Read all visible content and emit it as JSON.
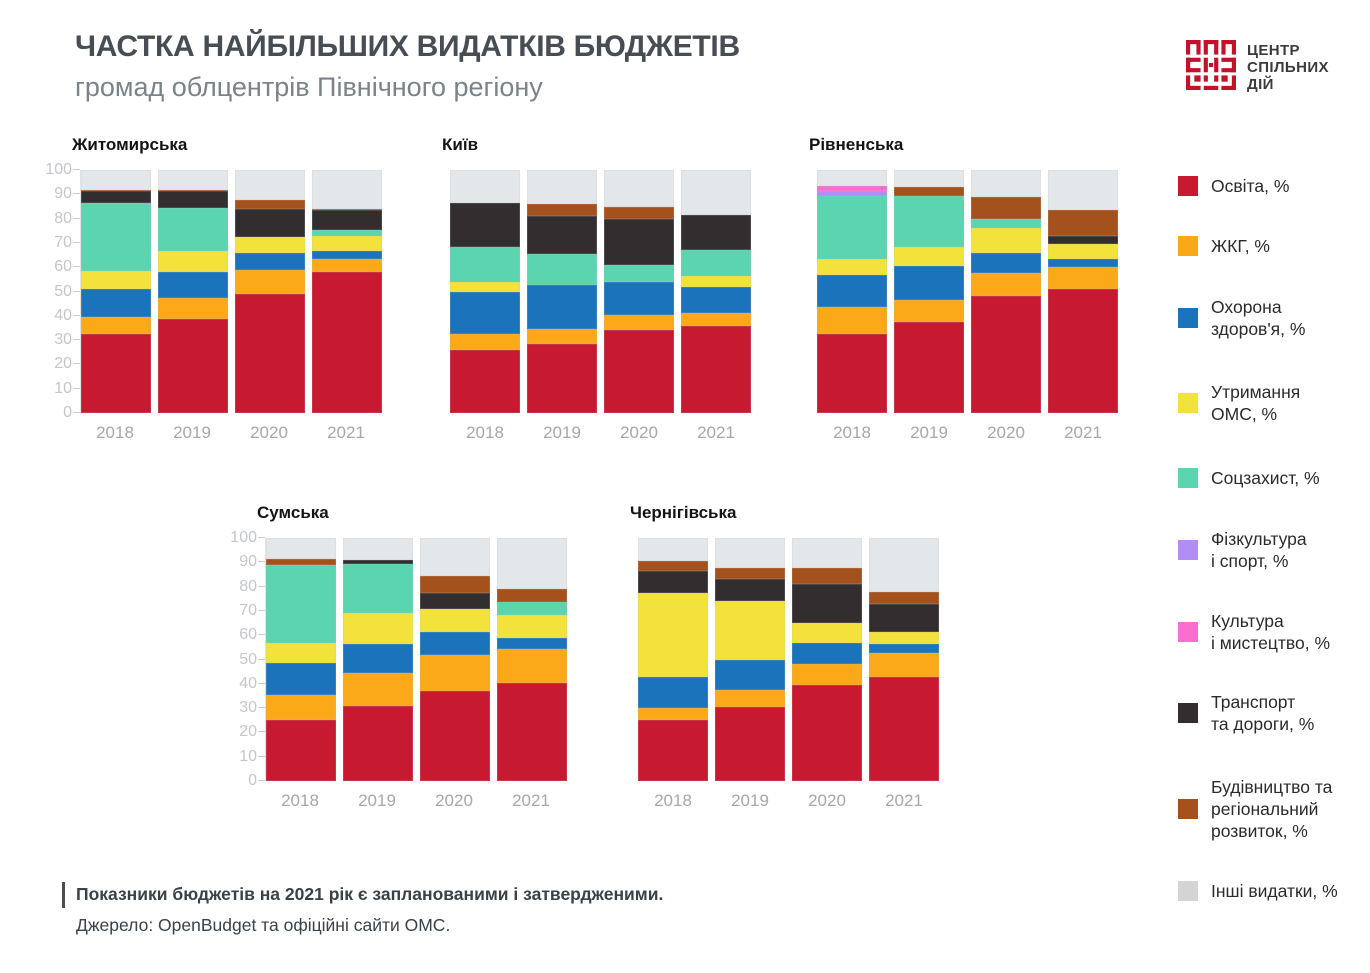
{
  "header": {
    "title": "ЧАСТКА НАЙБІЛЬШИХ ВИДАТКІВ БЮДЖЕТІВ",
    "subtitle": "громад облцентрів Північного регіону"
  },
  "logo": {
    "lines": [
      "ЦЕНТР",
      "СПІЛЬНИХ",
      "ДІЙ"
    ],
    "brand_color": "#C5122B",
    "text_color": "#3B3B3A"
  },
  "legend": {
    "items": [
      {
        "label": "Освіта, %",
        "color": "#C7192F"
      },
      {
        "label": "ЖКГ, %",
        "color": "#FBA919"
      },
      {
        "label": "Охорона\nздоров'я, %",
        "color": "#1B74BB"
      },
      {
        "label": "Утримання\nОМС, %",
        "color": "#F3E23B"
      },
      {
        "label": "Соцзахист, %",
        "color": "#5BD5B0"
      },
      {
        "label": "Фізкультура\nі спорт, %",
        "color": "#B18EF4"
      },
      {
        "label": "Культура\nі мистецтво, %",
        "color": "#FB6ECF"
      },
      {
        "label": "Транспорт\nта дороги, %",
        "color": "#322E2F"
      },
      {
        "label": "Будівництво та\nрегіональний\nрозвиток, %",
        "color": "#A5511D"
      },
      {
        "label": "Інші  видатки, %",
        "color": "#D4D4D4"
      }
    ]
  },
  "series_colors": {
    "Освіта": "#C7192F",
    "ЖКГ": "#FBA919",
    "Охорона здоров'я": "#1B74BB",
    "Утримання ОМС": "#F3E23B",
    "Соцзахист": "#5BD5B0",
    "Фізкультура і спорт": "#B18EF4",
    "Культура і мистецтво": "#FB6ECF",
    "Транспорт та дороги": "#322E2F",
    "Будівництво та регіональний розвиток": "#A5511D",
    "Інші видатки": "#E4E7E9"
  },
  "chart_data": [
    {
      "type": "bar",
      "stacked": true,
      "title": "Житомирська",
      "categories": [
        "2018",
        "2019",
        "2020",
        "2021"
      ],
      "ylim": [
        0,
        100
      ],
      "y_ticks_step": 10,
      "y_axis_visible": true,
      "grid": false,
      "series": [
        {
          "name": "Освіта",
          "values": [
            32.5,
            38.5,
            49,
            58
          ]
        },
        {
          "name": "ЖКГ",
          "values": [
            7,
            9,
            10,
            5.5
          ]
        },
        {
          "name": "Охорона здоров'я",
          "values": [
            11.5,
            10.5,
            7,
            3
          ]
        },
        {
          "name": "Утримання ОМС",
          "values": [
            7.5,
            8.5,
            6.5,
            6.5
          ]
        },
        {
          "name": "Соцзахист",
          "values": [
            27.5,
            18,
            0,
            2.5
          ]
        },
        {
          "name": "Фізкультура і спорт",
          "values": [
            0.5,
            0,
            0,
            0
          ]
        },
        {
          "name": "Культура і мистецтво",
          "values": [
            0,
            0,
            0,
            0
          ]
        },
        {
          "name": "Транспорт та дороги",
          "values": [
            5,
            7,
            11.5,
            8
          ]
        },
        {
          "name": "Будівництво та регіональний розвиток",
          "values": [
            0.5,
            0.5,
            3.5,
            0.5
          ]
        },
        {
          "name": "Інші видатки",
          "values": [
            8,
            8,
            12.5,
            16
          ]
        }
      ]
    },
    {
      "type": "bar",
      "stacked": true,
      "title": "Київ",
      "categories": [
        "2018",
        "2019",
        "2020",
        "2021"
      ],
      "ylim": [
        0,
        100
      ],
      "y_ticks_step": 10,
      "y_axis_visible": false,
      "grid": false,
      "series": [
        {
          "name": "Освіта",
          "values": [
            26,
            28.5,
            34,
            36
          ]
        },
        {
          "name": "ЖКГ",
          "values": [
            6.5,
            6,
            6.5,
            5
          ]
        },
        {
          "name": "Охорона здоров'я",
          "values": [
            17.5,
            18,
            13.5,
            11
          ]
        },
        {
          "name": "Утримання ОМС",
          "values": [
            4,
            0,
            0,
            4.5
          ]
        },
        {
          "name": "Соцзахист",
          "values": [
            14.5,
            13,
            7,
            10.5
          ]
        },
        {
          "name": "Фізкультура і спорт",
          "values": [
            0,
            0,
            0,
            0
          ]
        },
        {
          "name": "Культура і мистецтво",
          "values": [
            0,
            0,
            0,
            0
          ]
        },
        {
          "name": "Транспорт та дороги",
          "values": [
            18,
            15.5,
            19,
            14.5
          ]
        },
        {
          "name": "Будівництво та регіональний розвиток",
          "values": [
            0,
            5,
            5,
            0
          ]
        },
        {
          "name": "Інші видатки",
          "values": [
            13.5,
            14,
            15,
            18.5
          ]
        }
      ]
    },
    {
      "type": "bar",
      "stacked": true,
      "title": "Рівненська",
      "categories": [
        "2018",
        "2019",
        "2020",
        "2021"
      ],
      "ylim": [
        0,
        100
      ],
      "y_ticks_step": 10,
      "y_axis_visible": false,
      "grid": false,
      "series": [
        {
          "name": "Освіта",
          "values": [
            32.5,
            37.5,
            48,
            51
          ]
        },
        {
          "name": "ЖКГ",
          "values": [
            11,
            9,
            9.5,
            9
          ]
        },
        {
          "name": "Охорона здоров'я",
          "values": [
            13.5,
            14,
            8.5,
            3.5
          ]
        },
        {
          "name": "Утримання ОМС",
          "values": [
            6.5,
            8,
            10,
            6
          ]
        },
        {
          "name": "Соцзахист",
          "values": [
            26,
            21,
            4,
            0
          ]
        },
        {
          "name": "Фізкультура і спорт",
          "values": [
            2,
            0,
            0,
            0
          ]
        },
        {
          "name": "Культура і мистецтво",
          "values": [
            2,
            0,
            0,
            0
          ]
        },
        {
          "name": "Транспорт та дороги",
          "values": [
            0,
            0,
            0,
            3.5
          ]
        },
        {
          "name": "Будівництво та регіональний розвиток",
          "values": [
            0,
            3.5,
            9,
            10.5
          ]
        },
        {
          "name": "Інші видатки",
          "values": [
            6.5,
            7,
            11,
            16.5
          ]
        }
      ]
    },
    {
      "type": "bar",
      "stacked": true,
      "title": "Сумська",
      "categories": [
        "2018",
        "2019",
        "2020",
        "2021"
      ],
      "ylim": [
        0,
        100
      ],
      "y_ticks_step": 10,
      "y_axis_visible": true,
      "grid": false,
      "series": [
        {
          "name": "Освіта",
          "values": [
            25,
            31,
            37,
            40.5
          ]
        },
        {
          "name": "ЖКГ",
          "values": [
            10.5,
            13.5,
            15,
            14
          ]
        },
        {
          "name": "Охорона здоров'я",
          "values": [
            13,
            12,
            9.5,
            4.5
          ]
        },
        {
          "name": "Утримання ОМС",
          "values": [
            8.5,
            12.5,
            9.5,
            9.5
          ]
        },
        {
          "name": "Соцзахист",
          "values": [
            32,
            20.5,
            0,
            5
          ]
        },
        {
          "name": "Фізкультура і спорт",
          "values": [
            0,
            0,
            0,
            0
          ]
        },
        {
          "name": "Культура і мистецтво",
          "values": [
            0,
            0,
            0,
            0
          ]
        },
        {
          "name": "Транспорт та дороги",
          "values": [
            0,
            1.5,
            6.5,
            0
          ]
        },
        {
          "name": "Будівництво та регіональний розвиток",
          "values": [
            2.5,
            0,
            7,
            5.5
          ]
        },
        {
          "name": "Інші видатки",
          "values": [
            8.5,
            9,
            15.5,
            21
          ]
        }
      ]
    },
    {
      "type": "bar",
      "stacked": true,
      "title": "Чернігівська",
      "categories": [
        "2018",
        "2019",
        "2020",
        "2021"
      ],
      "ylim": [
        0,
        100
      ],
      "y_ticks_step": 10,
      "y_axis_visible": false,
      "grid": false,
      "series": [
        {
          "name": "Освіта",
          "values": [
            25,
            30.5,
            39.5,
            43
          ]
        },
        {
          "name": "ЖКГ",
          "values": [
            5,
            7,
            8.5,
            9.5
          ]
        },
        {
          "name": "Охорона здоров'я",
          "values": [
            13,
            12.5,
            9,
            4
          ]
        },
        {
          "name": "Утримання ОМС",
          "values": [
            34.5,
            24,
            8,
            5
          ]
        },
        {
          "name": "Соцзахист",
          "values": [
            0,
            0,
            0,
            0
          ]
        },
        {
          "name": "Фізкультура і спорт",
          "values": [
            0,
            0,
            0,
            0
          ]
        },
        {
          "name": "Культура і мистецтво",
          "values": [
            0,
            0,
            0,
            0
          ]
        },
        {
          "name": "Транспорт та дороги",
          "values": [
            9,
            9,
            16,
            11.5
          ]
        },
        {
          "name": "Будівництво та регіональний розвиток",
          "values": [
            4,
            4.5,
            6.5,
            5
          ]
        },
        {
          "name": "Інші видатки",
          "values": [
            9.5,
            12.5,
            12.5,
            22
          ]
        }
      ]
    }
  ],
  "footer": {
    "footnote": "Показники бюджетів на 2021 рік є запланованими і затвердженими.",
    "source": "Джерело: OpenBudget та офіційні сайти ОМС."
  }
}
